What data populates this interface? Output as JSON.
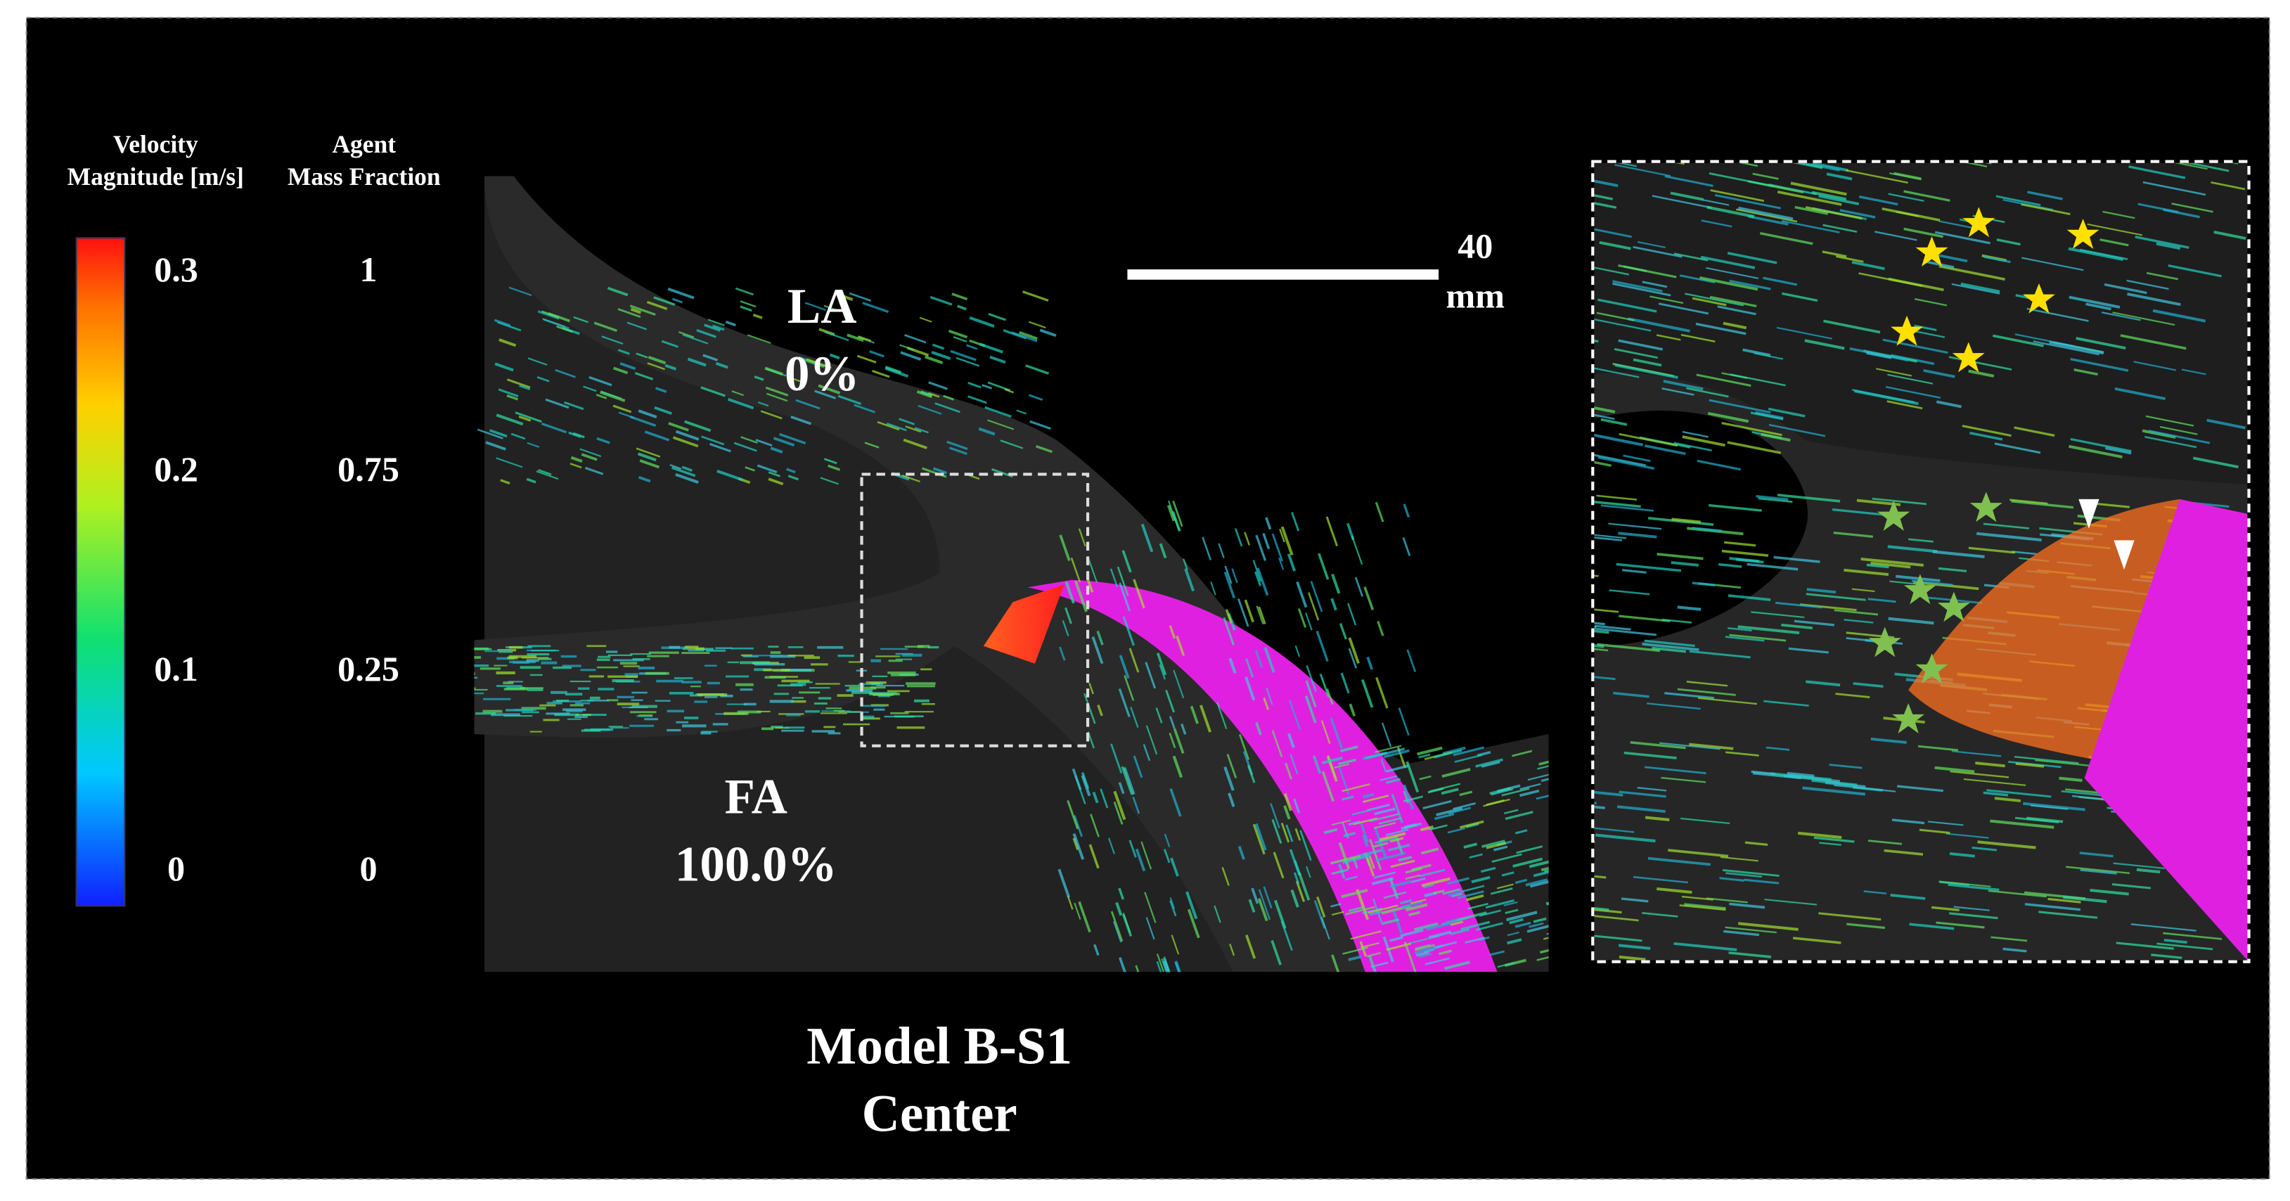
{
  "legend": {
    "velocity_title": [
      "Velocity",
      "Magnitude [m/s]"
    ],
    "velocity_ticks": [
      "0.3",
      "0.2",
      "0.1",
      "0"
    ],
    "agent_title": [
      "Agent",
      "Mass Fraction"
    ],
    "agent_ticks": [
      "1",
      "0.75",
      "0.25",
      "0"
    ]
  },
  "labels": {
    "la": [
      "LA",
      "0%"
    ],
    "fa": [
      "FA",
      "100.0%"
    ]
  },
  "scale_bar": [
    "40",
    "mm"
  ],
  "caption": [
    "Model B-S1",
    "Center"
  ]
}
